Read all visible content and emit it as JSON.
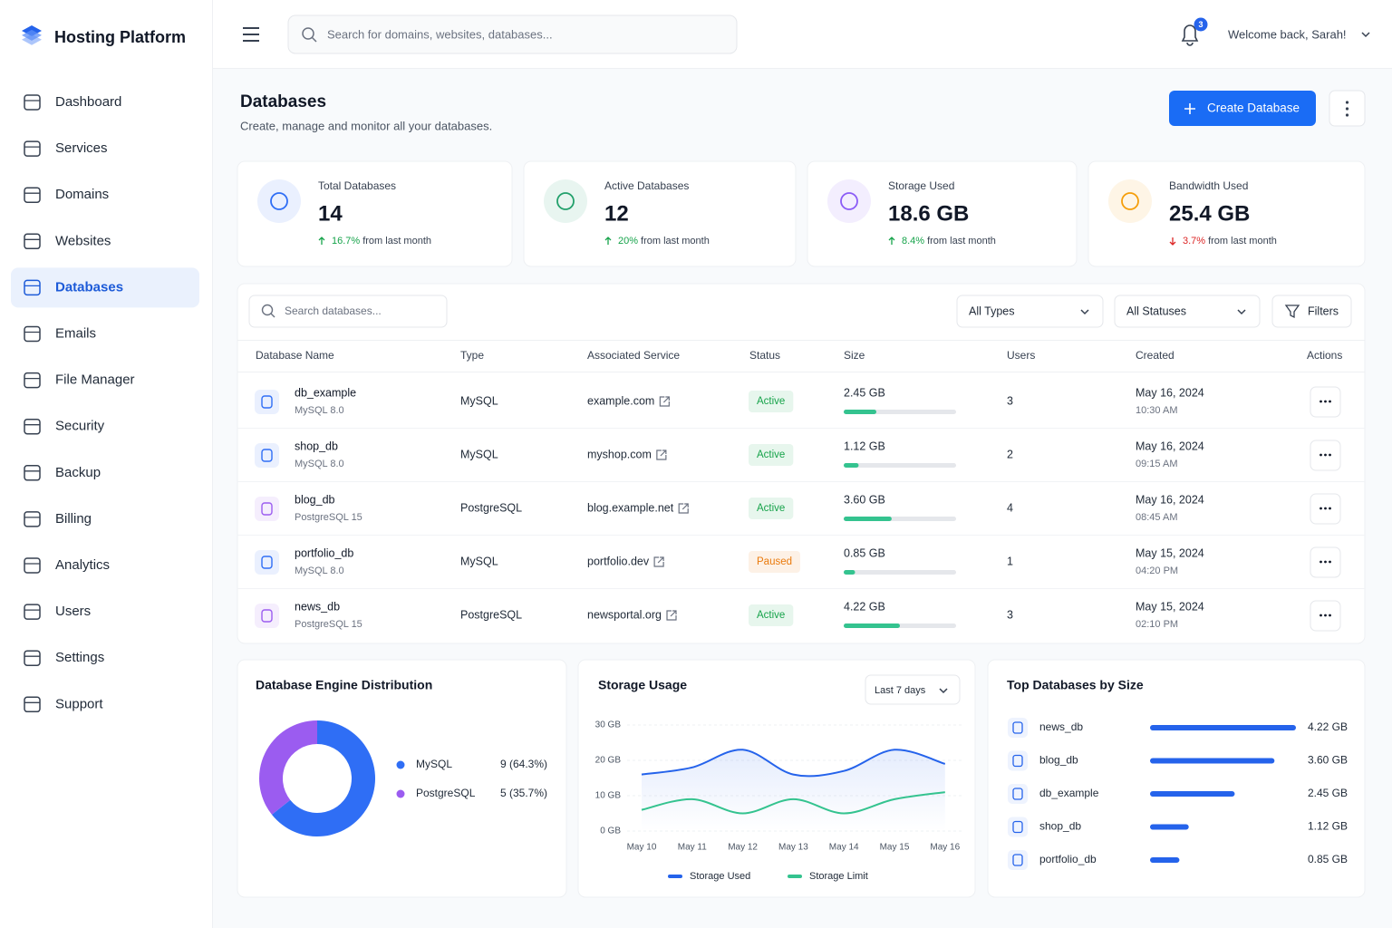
{
  "brand": "Hosting Platform",
  "nav": {
    "items": [
      "Dashboard",
      "Services",
      "Domains",
      "Websites",
      "Databases",
      "Emails",
      "File Manager",
      "Security",
      "Backup",
      "Billing",
      "Analytics",
      "Users",
      "Settings",
      "Support"
    ],
    "active": 4
  },
  "header": {
    "search_placeholder": "Search for domains, websites, databases...",
    "notifications": 3,
    "welcome": "Welcome back, Sarah!"
  },
  "page": {
    "title": "Databases",
    "subtitle": "Create, manage and monitor all your databases.",
    "create_button": "Create Database"
  },
  "stats": [
    {
      "label": "Total Databases",
      "value": "14",
      "change": "16.7%",
      "change_note": "from last month",
      "trend": "up",
      "color": "#2f6ef5"
    },
    {
      "label": "Active Databases",
      "value": "12",
      "change": "20%",
      "change_note": "from last month",
      "trend": "up",
      "color": "#22a06b"
    },
    {
      "label": "Storage Used",
      "value": "18.6 GB",
      "change": "8.4%",
      "change_note": "from last month",
      "trend": "up",
      "color": "#8b5cf6"
    },
    {
      "label": "Bandwidth Used",
      "value": "25.4 GB",
      "change": "3.7%",
      "change_note": "from last month",
      "trend": "down",
      "color": "#f59e0b"
    }
  ],
  "table": {
    "search_placeholder": "Search databases...",
    "type_filter": "All Types",
    "status_filter": "All Statuses",
    "filters_button": "Filters",
    "columns": [
      "Database Name",
      "Type",
      "Associated Service",
      "Status",
      "Size",
      "Users",
      "Created",
      "Actions"
    ],
    "rows": [
      {
        "name": "db_example",
        "engine": "MySQL 8.0",
        "type": "MySQL",
        "service": "example.com",
        "status": "Active",
        "status_color": "#16a34a",
        "size": {
          "value": 2.45,
          "label": "2.45 GB"
        },
        "users": 3,
        "created_date": "May 16, 2024",
        "created_time": "10:30 AM"
      },
      {
        "name": "shop_db",
        "engine": "MySQL 8.0",
        "type": "MySQL",
        "service": "myshop.com",
        "status": "Active",
        "status_color": "#16a34a",
        "size": {
          "value": 1.12,
          "label": "1.12 GB"
        },
        "users": 2,
        "created_date": "May 16, 2024",
        "created_time": "09:15 AM"
      },
      {
        "name": "blog_db",
        "engine": "PostgreSQL 15",
        "type": "PostgreSQL",
        "service": "blog.example.net",
        "status": "Active",
        "status_color": "#16a34a",
        "size": {
          "value": 3.6,
          "label": "3.60 GB"
        },
        "users": 4,
        "created_date": "May 16, 2024",
        "created_time": "08:45 AM"
      },
      {
        "name": "portfolio_db",
        "engine": "MySQL 8.0",
        "type": "MySQL",
        "service": "portfolio.dev",
        "status": "Paused",
        "status_color": "#ea7a0c",
        "size": {
          "value": 0.85,
          "label": "0.85 GB"
        },
        "users": 1,
        "created_date": "May 15, 2024",
        "created_time": "04:20 PM"
      },
      {
        "name": "news_db",
        "engine": "PostgreSQL 15",
        "type": "PostgreSQL",
        "service": "newsportal.org",
        "status": "Active",
        "status_color": "#16a34a",
        "size": {
          "value": 4.22,
          "label": "4.22 GB"
        },
        "users": 3,
        "created_date": "May 15, 2024",
        "created_time": "02:10 PM"
      }
    ]
  },
  "chart_data": [
    {
      "type": "pie",
      "donut": true,
      "title": "Database Engine Distribution",
      "categories": [
        "MySQL",
        "PostgreSQL"
      ],
      "values": [
        9,
        5
      ],
      "value_labels": [
        "9 (64.3%)",
        "5 (35.7%)"
      ],
      "colors": [
        "#2f6ef5",
        "#9b5cf0"
      ]
    },
    {
      "type": "line",
      "title": "Storage Usage",
      "range_selector": "Last 7 days",
      "categories": [
        "May 10",
        "May 11",
        "May 12",
        "May 13",
        "May 14",
        "May 15",
        "May 16"
      ],
      "series": [
        {
          "name": "Storage Used",
          "color": "#2563eb",
          "values": [
            16,
            18,
            23,
            16,
            17,
            23,
            19
          ]
        },
        {
          "name": "Storage Limit",
          "color": "#34c38f",
          "values": [
            6,
            9,
            5,
            9,
            5,
            9,
            11
          ]
        }
      ],
      "ylim": [
        0,
        30
      ],
      "yticks": [
        {
          "value": 0,
          "label": "0 GB"
        },
        {
          "value": 10,
          "label": "10 GB"
        },
        {
          "value": 20,
          "label": "20 GB"
        },
        {
          "value": 30,
          "label": "30 GB"
        }
      ],
      "grid": true
    },
    {
      "type": "bar",
      "orientation": "horizontal",
      "title": "Top Databases by Size",
      "categories": [
        "news_db",
        "blog_db",
        "db_example",
        "shop_db",
        "portfolio_db"
      ],
      "values": [
        4.22,
        3.6,
        2.45,
        1.12,
        0.85
      ],
      "value_labels": [
        "4.22 GB",
        "3.60 GB",
        "2.45 GB",
        "1.12 GB",
        "0.85 GB"
      ],
      "color": "#2563eb"
    }
  ]
}
